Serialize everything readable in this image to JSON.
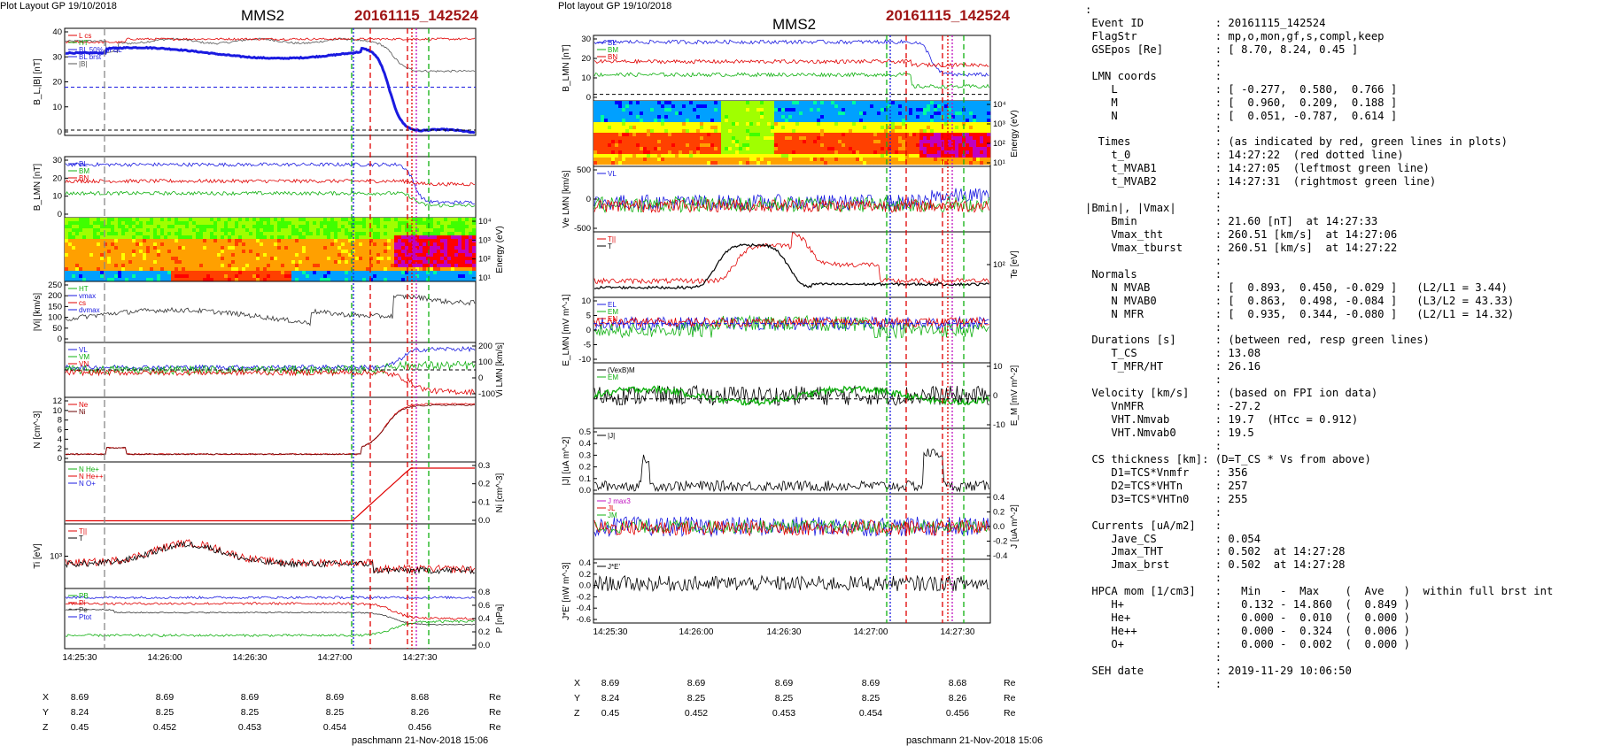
{
  "colors": {
    "red": "#e00000",
    "green": "#10b010",
    "blue": "#1a1ae0",
    "magenta": "#c010c0",
    "black": "#000000",
    "darkred": "#a01616"
  },
  "left": {
    "header": "Plot Layout GP 19/10/2018",
    "title": "MMS2",
    "event": "20161115_142524",
    "footer": "paschmann 21-Nov-2018 15:06",
    "time_ticks": [
      "14:25:30",
      "14:26:00",
      "14:26:30",
      "14:27:00",
      "14:27:30"
    ],
    "loc": {
      "rows": [
        [
          "X",
          "8.69",
          "8.69",
          "8.69",
          "8.69",
          "8.68",
          "Re"
        ],
        [
          "Y",
          "8.24",
          "8.25",
          "8.25",
          "8.25",
          "8.26",
          "Re"
        ],
        [
          "Z",
          "0.45",
          "0.452",
          "0.453",
          "0.454",
          "0.456",
          "Re"
        ]
      ]
    },
    "panels": [
      {
        "ylabel": "B_L,|B| [nT]",
        "side": "left",
        "ticks": [
          "40",
          "30",
          "20",
          "10",
          "0"
        ],
        "legend": [
          "L cs",
          "HT",
          "BL 50% of BL",
          "BL brst",
          "|B|"
        ]
      },
      {
        "ylabel": "B_LMN [nT]",
        "side": "left",
        "ticks": [
          "30",
          "20",
          "10",
          "0"
        ],
        "legend": [
          "BL",
          "BM",
          "BN"
        ]
      },
      {
        "ylabel": "Energy (eV)",
        "side": "right",
        "ticks": [
          "10^4",
          "10^3",
          "10^2",
          "10^1"
        ],
        "legend": []
      },
      {
        "ylabel": "|Vi| [km/s]",
        "side": "left",
        "ticks": [
          "250",
          "200",
          "150",
          "100",
          "50",
          "0"
        ],
        "legend": [
          "HT",
          "vmax",
          "cs",
          "dvmax"
        ]
      },
      {
        "ylabel": "Vi LMN [km/s]",
        "side": "right",
        "ticks": [
          "200",
          "100",
          "0",
          "-100"
        ],
        "legend": [
          "VL",
          "VM",
          "VN"
        ]
      },
      {
        "ylabel": "N [cm^-3]",
        "side": "left",
        "ticks": [
          "12",
          "10",
          "8",
          "6",
          "4",
          "2",
          "0"
        ],
        "legend": [
          "Ne",
          "Ni"
        ]
      },
      {
        "ylabel": "Ni [cm^-3]",
        "side": "right",
        "ticks": [
          "0.3",
          "0.2",
          "0.1",
          "0.0"
        ],
        "legend": [
          "N He+",
          "N He++",
          "N O+"
        ]
      },
      {
        "ylabel": "Ti [eV]",
        "side": "left",
        "ticks": [
          "10^3"
        ],
        "legend": [
          "T||",
          "T"
        ]
      },
      {
        "ylabel": "P [nPa]",
        "side": "right",
        "ticks": [
          "0.8",
          "0.6",
          "0.4",
          "0.2",
          "0.0"
        ],
        "legend": [
          "PB",
          "Pi",
          "Pe",
          "Ptot"
        ]
      }
    ]
  },
  "mid": {
    "header": "Plot layout GP 19/10/2018",
    "title": "MMS2",
    "event": "20161115_142524",
    "footer": "paschmann 21-Nov-2018 15:06",
    "time_ticks": [
      "14:25:30",
      "14:26:00",
      "14:26:30",
      "14:27:00",
      "14:27:30"
    ],
    "loc": {
      "rows": [
        [
          "X",
          "8.69",
          "8.69",
          "8.69",
          "8.69",
          "8.68",
          "Re"
        ],
        [
          "Y",
          "8.24",
          "8.25",
          "8.25",
          "8.25",
          "8.26",
          "Re"
        ],
        [
          "Z",
          "0.45",
          "0.452",
          "0.453",
          "0.454",
          "0.456",
          "Re"
        ]
      ]
    },
    "panels": [
      {
        "ylabel": "B_LMN [nT]",
        "side": "left",
        "ticks": [
          "30",
          "20",
          "10",
          "0"
        ],
        "legend": [
          "BL",
          "BM",
          "BN"
        ]
      },
      {
        "ylabel": "Energy (eV)",
        "side": "right",
        "ticks": [
          "10^4",
          "10^3",
          "10^2",
          "10^1"
        ],
        "legend": []
      },
      {
        "ylabel": "Ve LMN [km/s]",
        "side": "left",
        "ticks": [
          "500",
          "0",
          "-500"
        ],
        "legend": [
          "VL"
        ]
      },
      {
        "ylabel": "Te [eV]",
        "side": "right",
        "ticks": [
          "10^2"
        ],
        "legend": [
          "T||",
          "T"
        ]
      },
      {
        "ylabel": "E_LMN [mV m^-1]",
        "side": "left",
        "ticks": [
          "10",
          "5",
          "0",
          "-5",
          "-10"
        ],
        "legend": [
          "EL",
          "EM",
          "EN"
        ]
      },
      {
        "ylabel": "E_M [mV m^-2]",
        "side": "right",
        "ticks": [
          "10",
          "0",
          "-10"
        ],
        "legend": [
          "(VexB)M",
          "EM"
        ]
      },
      {
        "ylabel": "|J| [uA m^-2]",
        "side": "left",
        "ticks": [
          "0.5",
          "0.4",
          "0.3",
          "0.2",
          "0.1",
          "0.0"
        ],
        "legend": [
          "|J|"
        ]
      },
      {
        "ylabel": "J [uA m^-2]",
        "side": "right",
        "ticks": [
          "0.4",
          "0.2",
          "0.0",
          "-0.2",
          "-0.4"
        ],
        "legend": [
          "J max3",
          "JL",
          "JM"
        ]
      },
      {
        "ylabel": "J*E' [nW m^-3]",
        "side": "left",
        "ticks": [
          "0.4",
          "0.2",
          "0.0",
          "-0.2",
          "-0.4",
          "-0.6"
        ],
        "legend": [
          "J*E'"
        ]
      }
    ]
  },
  "info": [
    ":",
    " Event ID           : 20161115_142524",
    " FlagStr            : mp,o,mon,gf,s,compl,keep",
    " GSEpos [Re]        : [ 8.70, 8.24, 0.45 ]",
    "                    :",
    " LMN coords         :",
    "    L               : [ -0.277,  0.580,  0.766 ]",
    "    M               : [  0.960,  0.209,  0.188 ]",
    "    N               : [  0.051, -0.787,  0.614 ]",
    "                    :",
    "  Times             : (as indicated by red, green lines in plots)",
    "    t_0             : 14:27:22  (red dotted line)",
    "    t_MVAB1         : 14:27:05  (leftmost green line)",
    "    t_MVAB2         : 14:27:31  (rightmost green line)",
    "                    :",
    "|Bmin|, |Vmax|      :",
    "    Bmin            : 21.60 [nT]  at 14:27:33",
    "    Vmax_tht        : 260.51 [km/s]  at 14:27:06",
    "    Vmax_tburst     : 260.51 [km/s]  at 14:27:22",
    "                    :",
    " Normals            :",
    "    N MVAB          : [  0.893,  0.450, -0.029 ]   (L2/L1 = 3.44)",
    "    N MVAB0         : [  0.863,  0.498, -0.084 ]   (L3/L2 = 43.33)",
    "    N MFR           : [  0.935,  0.344, -0.080 ]   (L2/L1 = 14.32)",
    "                    :",
    " Durations [s]      : (between red, resp green lines)",
    "    T_CS            : 13.08",
    "    T_MFR/HT        : 26.16",
    "                    :",
    " Velocity [km/s]    : (based on FPI ion data)",
    "    VnMFR           : -27.2",
    "    VHT.Nmvab       : 19.7  (HTcc = 0.912)",
    "    VHT.Nmvab0      : 19.5",
    "                    :",
    " CS thickness [km]: (D=T_CS * Vs from above)",
    "    D1=TCS*Vnmfr    : 356",
    "    D2=TCS*VHTn     : 257",
    "    D3=TCS*VHTn0    : 255",
    "                    :",
    " Currents [uA/m2]   :",
    "    Jave_CS         : 0.054",
    "    Jmax_THT        : 0.502  at 14:27:28",
    "    Jmax_brst       : 0.502  at 14:27:28",
    "                    :",
    " HPCA mom [1/cm3]   :   Min   -  Max    (  Ave   )  within full brst int",
    "    H+              :   0.132 - 14.860  (  0.849 )",
    "    He+             :   0.000 -  0.010  (  0.000 )",
    "    He++            :   0.000 -  0.324  (  0.006 )",
    "    O+              :   0.000 -  0.002  (  0.000 )",
    "                    :",
    " SEH date           : 2019-11-29 10:06:50",
    "                    :"
  ],
  "chart_data": [
    {
      "type": "line",
      "title": "MMS2",
      "subtitle": "20161115_142524",
      "xlabel": "",
      "x_ticks": [
        "14:25:30",
        "14:26:00",
        "14:26:30",
        "14:27:00",
        "14:27:30"
      ],
      "series": [
        {
          "name": "BL",
          "values_desc": [
            33,
            32,
            31,
            32,
            34,
            35,
            34,
            20,
            2,
            5
          ]
        },
        {
          "name": "|B|",
          "values": [
            37,
            38,
            37,
            38,
            38,
            38,
            37,
            28,
            22,
            22
          ]
        }
      ]
    },
    {
      "type": "line",
      "title": "MMS2",
      "subtitle": "20161115_142524",
      "xlabel": "",
      "x_ticks": [
        "14:25:30",
        "14:26:00",
        "14:26:30",
        "14:27:00",
        "14:27:30"
      ],
      "series": [
        {
          "name": "BL",
          "values": [
            33,
            32,
            31,
            32,
            34,
            35,
            34,
            20,
            2,
            5
          ]
        },
        {
          "name": "Te",
          "values": [
            150,
            160,
            500,
            150,
            140,
            120,
            110,
            100,
            90,
            80
          ]
        }
      ]
    }
  ]
}
